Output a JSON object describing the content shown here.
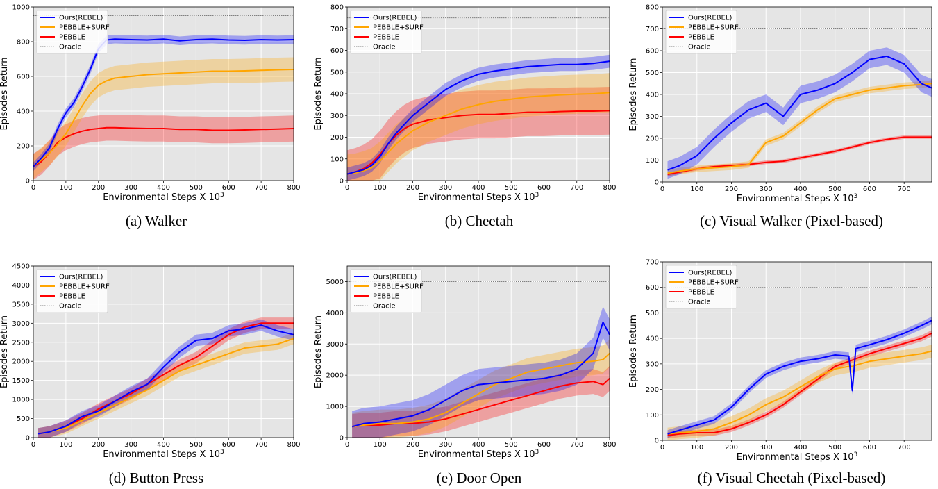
{
  "colors": {
    "ours": "#0000ff",
    "surf": "#ffa500",
    "pebble": "#ff0000",
    "oracle": "#808080",
    "plot_bg": "#e5e5e5",
    "grid": "#ffffff"
  },
  "chart_data": [
    {
      "id": "a",
      "type": "line",
      "caption": "(a) Walker",
      "xlabel": "Environmental Steps X 10",
      "xlabel_sup": "3",
      "ylabel": "Episodes Return",
      "xlim": [
        0,
        800
      ],
      "ylim": [
        0,
        1000
      ],
      "xticks": [
        0,
        100,
        200,
        300,
        400,
        500,
        600,
        700,
        800
      ],
      "yticks": [
        0,
        200,
        400,
        600,
        800,
        1000
      ],
      "grid": true,
      "legend": "top-left",
      "oracle": 950,
      "x": [
        0,
        25,
        50,
        75,
        100,
        125,
        150,
        175,
        200,
        225,
        250,
        300,
        350,
        400,
        450,
        500,
        550,
        600,
        650,
        700,
        750,
        800
      ],
      "series": [
        {
          "name": "Ours(REBEL)",
          "color_key": "ours",
          "band": 25,
          "values": [
            80,
            130,
            190,
            300,
            390,
            450,
            540,
            640,
            760,
            810,
            815,
            812,
            810,
            815,
            805,
            812,
            815,
            810,
            808,
            812,
            810,
            812
          ]
        },
        {
          "name": "PEBBLE+SURF",
          "color_key": "surf",
          "band": 70,
          "values": [
            80,
            120,
            160,
            210,
            270,
            350,
            430,
            500,
            550,
            575,
            590,
            600,
            610,
            615,
            620,
            625,
            630,
            630,
            632,
            635,
            638,
            640
          ]
        },
        {
          "name": "PEBBLE",
          "color_key": "pebble",
          "band": 75,
          "values": [
            80,
            110,
            160,
            220,
            250,
            270,
            285,
            295,
            300,
            305,
            305,
            302,
            300,
            300,
            295,
            295,
            290,
            290,
            292,
            295,
            297,
            300
          ]
        },
        {
          "name": "Oracle",
          "color_key": "oracle",
          "dotted": true
        }
      ]
    },
    {
      "id": "b",
      "type": "line",
      "caption": "(b) Cheetah",
      "xlabel": "Environmental Steps X 10",
      "xlabel_sup": "3",
      "ylabel": "Episodes Return",
      "xlim": [
        0,
        800
      ],
      "ylim": [
        0,
        800
      ],
      "xticks": [
        0,
        100,
        200,
        300,
        400,
        500,
        600,
        700,
        800
      ],
      "yticks": [
        0,
        100,
        200,
        300,
        400,
        500,
        600,
        700,
        800
      ],
      "grid": true,
      "legend": "top-left",
      "oracle": 750,
      "x": [
        0,
        25,
        50,
        75,
        100,
        125,
        150,
        175,
        200,
        250,
        300,
        350,
        400,
        450,
        500,
        550,
        600,
        650,
        700,
        750,
        800
      ],
      "series": [
        {
          "name": "Ours(REBEL)",
          "color_key": "ours",
          "band": 30,
          "values": [
            30,
            40,
            50,
            70,
            110,
            170,
            220,
            260,
            300,
            360,
            420,
            460,
            490,
            505,
            515,
            525,
            530,
            535,
            535,
            540,
            550
          ]
        },
        {
          "name": "PEBBLE+SURF",
          "color_key": "surf",
          "band": 90,
          "values": [
            30,
            35,
            45,
            60,
            90,
            130,
            170,
            200,
            230,
            270,
            300,
            330,
            350,
            365,
            375,
            385,
            390,
            395,
            398,
            400,
            405
          ]
        },
        {
          "name": "PEBBLE",
          "color_key": "pebble",
          "band": 110,
          "values": [
            30,
            40,
            55,
            80,
            120,
            170,
            210,
            240,
            260,
            280,
            290,
            300,
            305,
            305,
            310,
            315,
            315,
            318,
            320,
            320,
            322
          ]
        },
        {
          "name": "Oracle",
          "color_key": "oracle",
          "dotted": true
        }
      ]
    },
    {
      "id": "c",
      "type": "line",
      "caption": "(c) Visual Walker (Pixel-based)",
      "xlabel": "Environmental Steps X 10",
      "xlabel_sup": "3",
      "ylabel": "Episodes Return",
      "xlim": [
        0,
        780
      ],
      "ylim": [
        0,
        800
      ],
      "xticks": [
        0,
        100,
        200,
        300,
        400,
        500,
        600,
        700
      ],
      "yticks": [
        0,
        100,
        200,
        300,
        400,
        500,
        600,
        700,
        800
      ],
      "grid": true,
      "legend": "top-left",
      "oracle": 700,
      "x": [
        15,
        50,
        100,
        150,
        200,
        250,
        300,
        350,
        400,
        450,
        500,
        550,
        600,
        650,
        700,
        750,
        780
      ],
      "series": [
        {
          "name": "Ours(REBEL)",
          "color_key": "ours",
          "band": 40,
          "values": [
            55,
            75,
            120,
            200,
            270,
            330,
            360,
            300,
            400,
            420,
            450,
            500,
            560,
            575,
            540,
            450,
            430
          ]
        },
        {
          "name": "PEBBLE+SURF",
          "color_key": "surf",
          "band": 15,
          "values": [
            40,
            50,
            60,
            65,
            70,
            80,
            180,
            210,
            270,
            330,
            380,
            400,
            420,
            430,
            440,
            445,
            450
          ]
        },
        {
          "name": "PEBBLE",
          "color_key": "pebble",
          "band": 8,
          "values": [
            35,
            45,
            60,
            70,
            75,
            80,
            90,
            95,
            110,
            125,
            140,
            160,
            180,
            195,
            205,
            205,
            205
          ]
        },
        {
          "name": "Oracle",
          "color_key": "oracle",
          "dotted": true
        }
      ]
    },
    {
      "id": "d",
      "type": "line",
      "caption": "(d) Button Press",
      "xlabel": "Environmental Steps X 10",
      "xlabel_sup": "3",
      "ylabel": "Episodes Return",
      "xlim": [
        0,
        800
      ],
      "ylim": [
        0,
        4500
      ],
      "xticks": [
        0,
        100,
        200,
        300,
        400,
        500,
        600,
        700,
        800
      ],
      "yticks": [
        0,
        500,
        1000,
        1500,
        2000,
        2500,
        3000,
        3500,
        4000,
        4500
      ],
      "grid": true,
      "legend": "top-left",
      "oracle": 4000,
      "x": [
        15,
        50,
        100,
        150,
        200,
        250,
        300,
        350,
        400,
        450,
        500,
        550,
        600,
        650,
        700,
        750,
        800
      ],
      "series": [
        {
          "name": "Ours(REBEL)",
          "color_key": "ours",
          "band": 150,
          "values": [
            100,
            150,
            300,
            550,
            700,
            950,
            1200,
            1400,
            1850,
            2250,
            2550,
            2600,
            2800,
            2850,
            2950,
            2800,
            2700
          ]
        },
        {
          "name": "PEBBLE+SURF",
          "color_key": "surf",
          "band": 150,
          "values": [
            100,
            150,
            250,
            450,
            650,
            850,
            1050,
            1250,
            1500,
            1750,
            1900,
            2050,
            2200,
            2350,
            2400,
            2450,
            2600
          ]
        },
        {
          "name": "PEBBLE",
          "color_key": "pebble",
          "band": 150,
          "values": [
            100,
            150,
            300,
            500,
            750,
            950,
            1150,
            1400,
            1650,
            1900,
            2100,
            2400,
            2700,
            2900,
            3000,
            3000,
            3000
          ]
        },
        {
          "name": "Oracle",
          "color_key": "oracle",
          "dotted": true
        }
      ]
    },
    {
      "id": "e",
      "type": "line",
      "caption": "(e) Door Open",
      "xlabel": "Environmental Steps X 10",
      "xlabel_sup": "3",
      "ylabel": "Episodes Return",
      "xlim": [
        0,
        800
      ],
      "ylim": [
        0,
        5500
      ],
      "xticks": [
        0,
        100,
        200,
        300,
        400,
        500,
        600,
        700,
        800
      ],
      "yticks": [
        0,
        1000,
        2000,
        3000,
        4000,
        5000
      ],
      "grid": true,
      "legend": "top-left",
      "oracle": 5000,
      "x": [
        15,
        50,
        100,
        150,
        200,
        250,
        300,
        350,
        400,
        450,
        500,
        550,
        600,
        650,
        700,
        750,
        780,
        800
      ],
      "series": [
        {
          "name": "Ours(REBEL)",
          "color_key": "ours",
          "band": 500,
          "values": [
            350,
            450,
            500,
            600,
            700,
            900,
            1200,
            1500,
            1700,
            1750,
            1800,
            1850,
            1900,
            2000,
            2200,
            2700,
            3700,
            3300
          ]
        },
        {
          "name": "PEBBLE+SURF",
          "color_key": "surf",
          "band": 450,
          "values": [
            350,
            400,
            450,
            450,
            500,
            600,
            800,
            1100,
            1400,
            1700,
            1900,
            2100,
            2200,
            2300,
            2400,
            2450,
            2500,
            2700
          ]
        },
        {
          "name": "PEBBLE",
          "color_key": "pebble",
          "band": 400,
          "values": [
            350,
            400,
            400,
            450,
            450,
            500,
            600,
            750,
            900,
            1050,
            1200,
            1350,
            1500,
            1650,
            1750,
            1800,
            1700,
            1900
          ]
        },
        {
          "name": "Oracle",
          "color_key": "oracle",
          "dotted": true
        }
      ]
    },
    {
      "id": "f",
      "type": "line",
      "caption": "(f) Visual Cheetah (Pixel-based)",
      "xlabel": "Environmental Steps X 10",
      "xlabel_sup": "3",
      "ylabel": "Episodes Return",
      "xlim": [
        0,
        780
      ],
      "ylim": [
        0,
        700
      ],
      "xticks": [
        0,
        100,
        200,
        300,
        400,
        500,
        600,
        700
      ],
      "yticks": [
        0,
        100,
        200,
        300,
        400,
        500,
        600,
        700
      ],
      "grid": true,
      "legend": "top-left",
      "oracle": 600,
      "x": [
        15,
        50,
        100,
        150,
        200,
        250,
        300,
        350,
        400,
        450,
        500,
        540,
        550,
        560,
        600,
        650,
        700,
        750,
        780
      ],
      "series": [
        {
          "name": "Ours(REBEL)",
          "color_key": "ours",
          "band": 15,
          "values": [
            25,
            40,
            60,
            80,
            130,
            200,
            260,
            290,
            310,
            320,
            335,
            330,
            195,
            360,
            375,
            395,
            420,
            450,
            470
          ]
        },
        {
          "name": "PEBBLE+SURF",
          "color_key": "surf",
          "band": 25,
          "values": [
            25,
            30,
            35,
            45,
            70,
            100,
            140,
            170,
            210,
            250,
            280,
            290,
            290,
            295,
            310,
            320,
            330,
            340,
            350
          ]
        },
        {
          "name": "PEBBLE",
          "color_key": "pebble",
          "band": 12,
          "values": [
            20,
            25,
            30,
            30,
            45,
            70,
            100,
            140,
            190,
            240,
            290,
            310,
            315,
            320,
            340,
            360,
            380,
            400,
            420
          ]
        },
        {
          "name": "Oracle",
          "color_key": "oracle",
          "dotted": true
        }
      ]
    }
  ]
}
